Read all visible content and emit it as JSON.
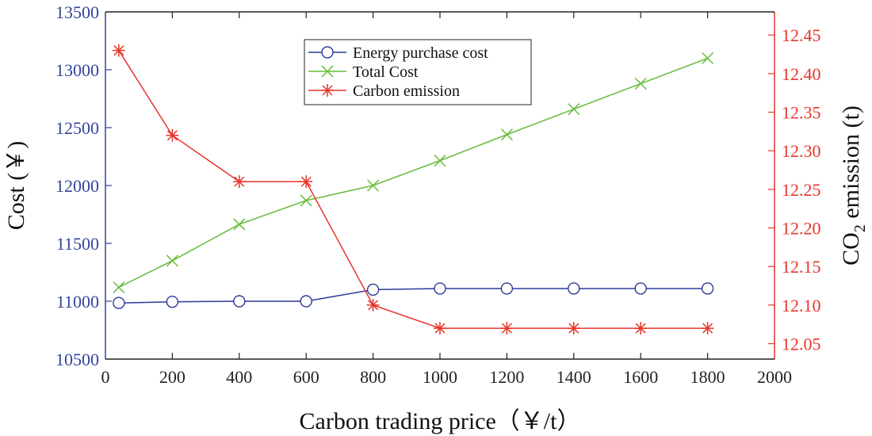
{
  "chart_data": {
    "type": "line",
    "x": [
      40,
      200,
      400,
      600,
      800,
      1000,
      1200,
      1400,
      1600,
      1800
    ],
    "xlim": [
      0,
      2000
    ],
    "xticks": [
      "0",
      "200",
      "400",
      "600",
      "800",
      "1000",
      "1200",
      "1400",
      "1600",
      "1800",
      "2000"
    ],
    "xlabel": "Carbon trading price（￥/t）",
    "ylabel_left": "Cost (￥)",
    "ylim_left": [
      10500,
      13500
    ],
    "yticks_left": [
      "10500",
      "11000",
      "11500",
      "12000",
      "12500",
      "13000",
      "13500"
    ],
    "ylabel_right_main": "CO",
    "ylabel_right_sub": "2",
    "ylabel_right_rest": " emission (t)",
    "ylim_right": [
      12.03,
      12.48
    ],
    "yticks_right": [
      "12.05",
      "12.10",
      "12.15",
      "12.20",
      "12.25",
      "12.30",
      "12.35",
      "12.40",
      "12.45"
    ],
    "legend_position": "top-center",
    "series": [
      {
        "name": "Energy purchase cost",
        "axis": "left",
        "color": "#2b3b99",
        "marker": "circle",
        "values": [
          10985,
          10995,
          11000,
          11000,
          11100,
          11110,
          11110,
          11110,
          11110,
          11110
        ]
      },
      {
        "name": "Total Cost",
        "axis": "left",
        "color": "#66bb3a",
        "marker": "x",
        "values": [
          11120,
          11350,
          11665,
          11870,
          12000,
          12215,
          12440,
          12660,
          12880,
          13100
        ]
      },
      {
        "name": "Carbon emission",
        "axis": "right",
        "color": "#e8352a",
        "marker": "asterisk",
        "values": [
          12.43,
          12.32,
          12.26,
          12.26,
          12.1,
          12.07,
          12.07,
          12.07,
          12.07,
          12.07
        ]
      }
    ]
  }
}
